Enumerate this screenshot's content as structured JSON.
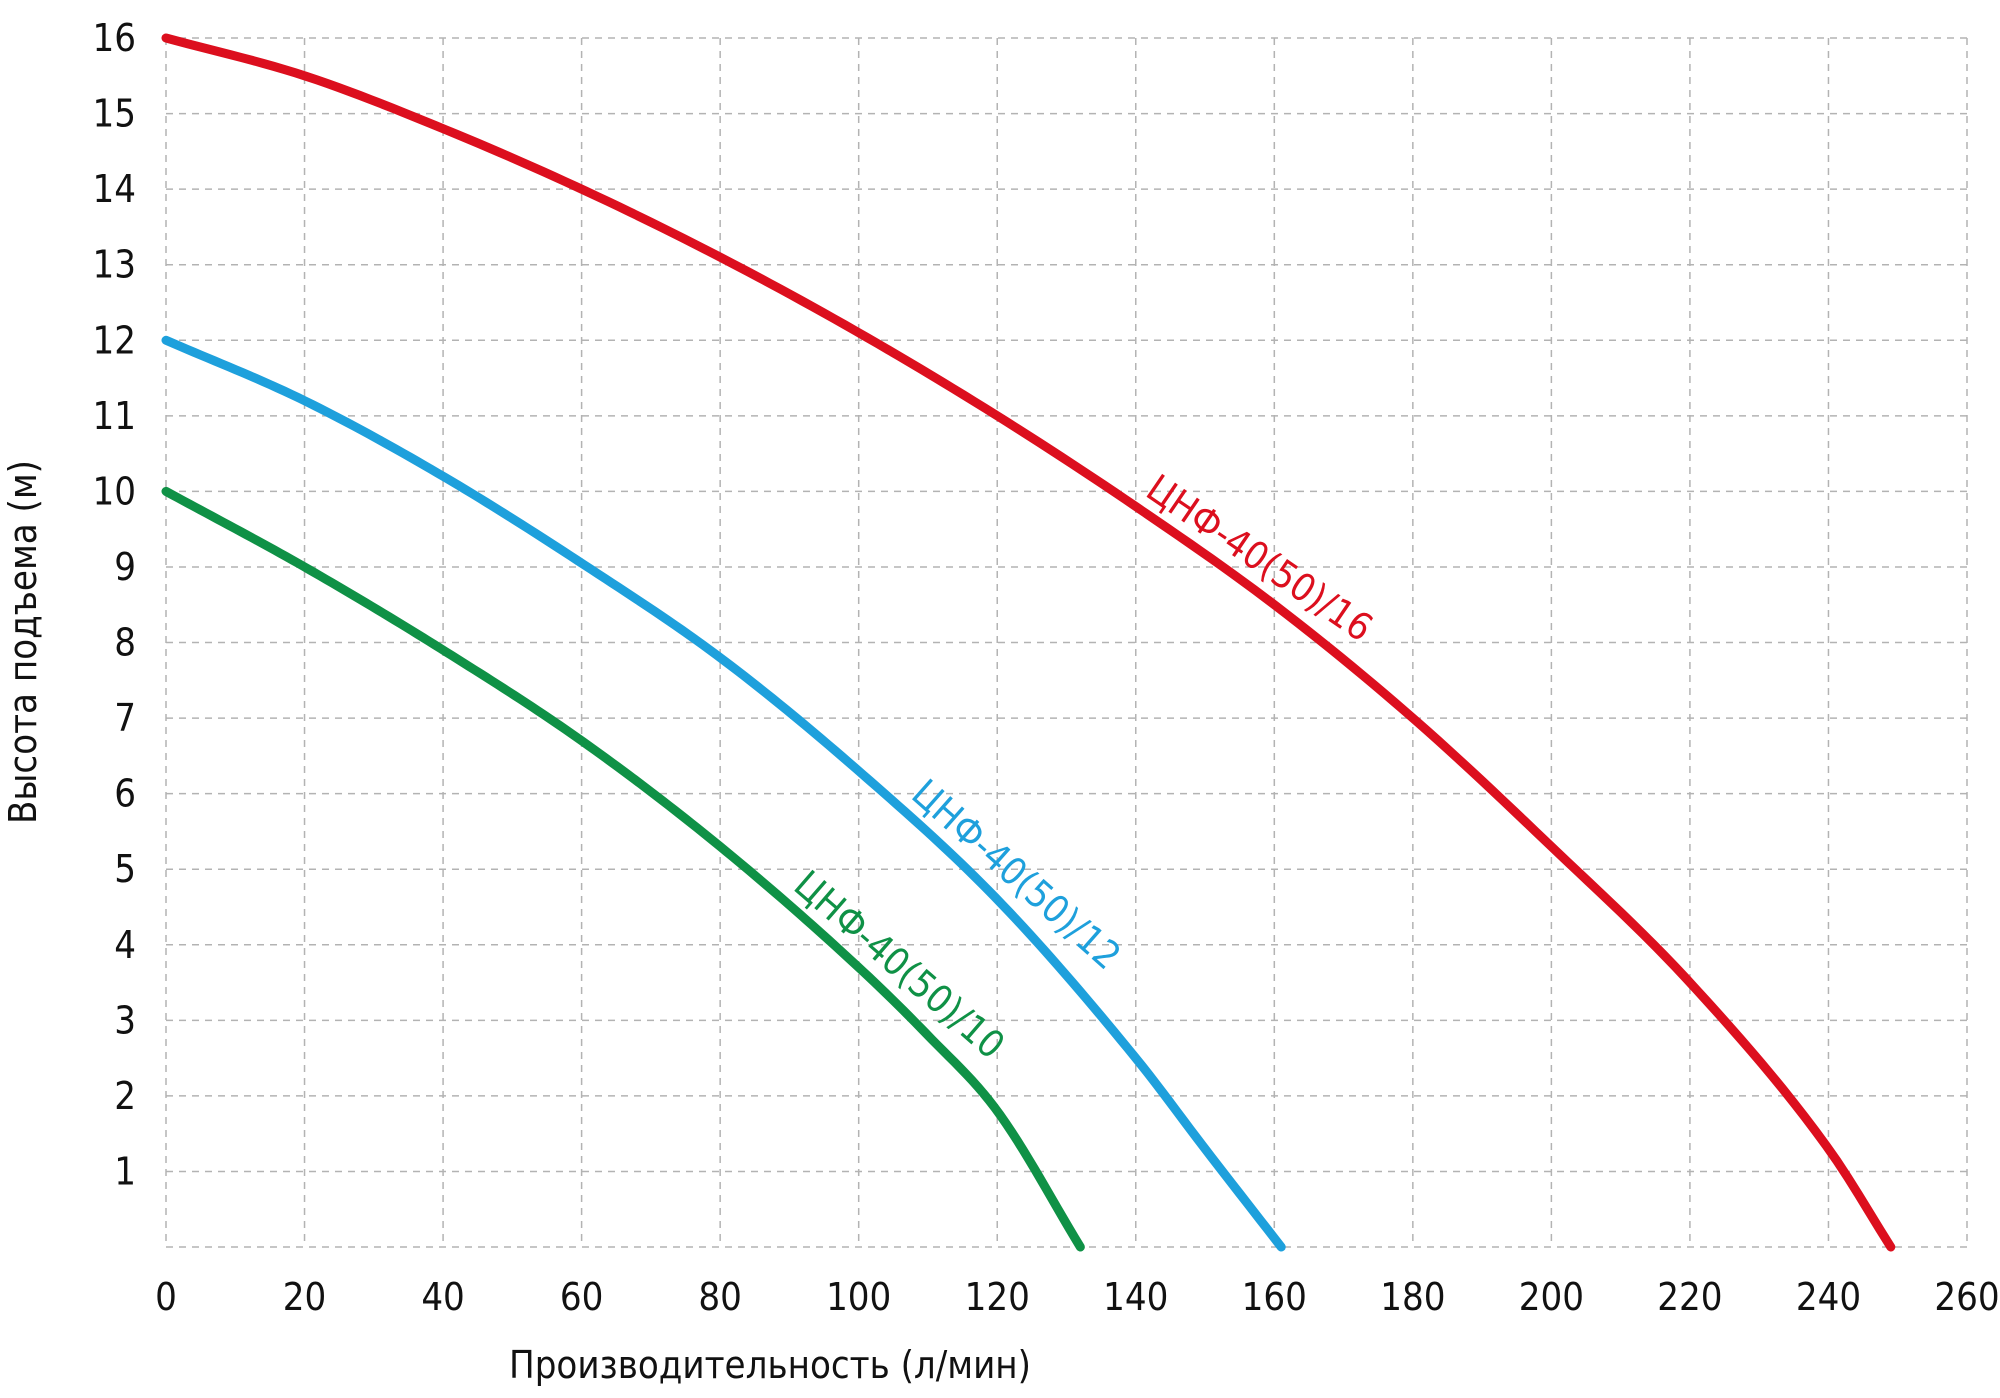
{
  "chart_data": {
    "type": "line",
    "title": "",
    "xlabel": "Производительность (л/мин)",
    "ylabel": "Высота подъема (м)",
    "xlim": [
      0,
      260
    ],
    "ylim": [
      0,
      16
    ],
    "x_ticks": [
      0,
      20,
      40,
      60,
      80,
      100,
      120,
      140,
      160,
      180,
      200,
      220,
      240,
      260
    ],
    "y_ticks": [
      1,
      2,
      3,
      4,
      5,
      6,
      7,
      8,
      9,
      10,
      11,
      12,
      13,
      14,
      15,
      16
    ],
    "grid": true,
    "legend": "none",
    "series": [
      {
        "name": "ЦНФ-40(50)/16",
        "color": "#dc0f1e",
        "label_at_x": 140,
        "x": [
          0,
          20,
          40,
          60,
          80,
          100,
          120,
          140,
          160,
          180,
          200,
          220,
          240,
          249
        ],
        "y": [
          16.0,
          15.5,
          14.8,
          14.0,
          13.1,
          12.1,
          11.0,
          9.8,
          8.5,
          7.0,
          5.3,
          3.5,
          1.3,
          0.0
        ]
      },
      {
        "name": "ЦНФ-40(50)/12",
        "color": "#1ea0dc",
        "label_at_x": 106,
        "x": [
          0,
          20,
          40,
          60,
          80,
          100,
          120,
          140,
          150,
          161
        ],
        "y": [
          12.0,
          11.2,
          10.2,
          9.05,
          7.8,
          6.3,
          4.6,
          2.5,
          1.3,
          0.0
        ]
      },
      {
        "name": "ЦНФ-40(50)/10",
        "color": "#0f9146",
        "label_at_x": 89,
        "x": [
          0,
          20,
          40,
          60,
          80,
          100,
          110,
          120,
          132
        ],
        "y": [
          10.0,
          9.0,
          7.9,
          6.7,
          5.3,
          3.7,
          2.8,
          1.8,
          0.0
        ]
      }
    ]
  }
}
